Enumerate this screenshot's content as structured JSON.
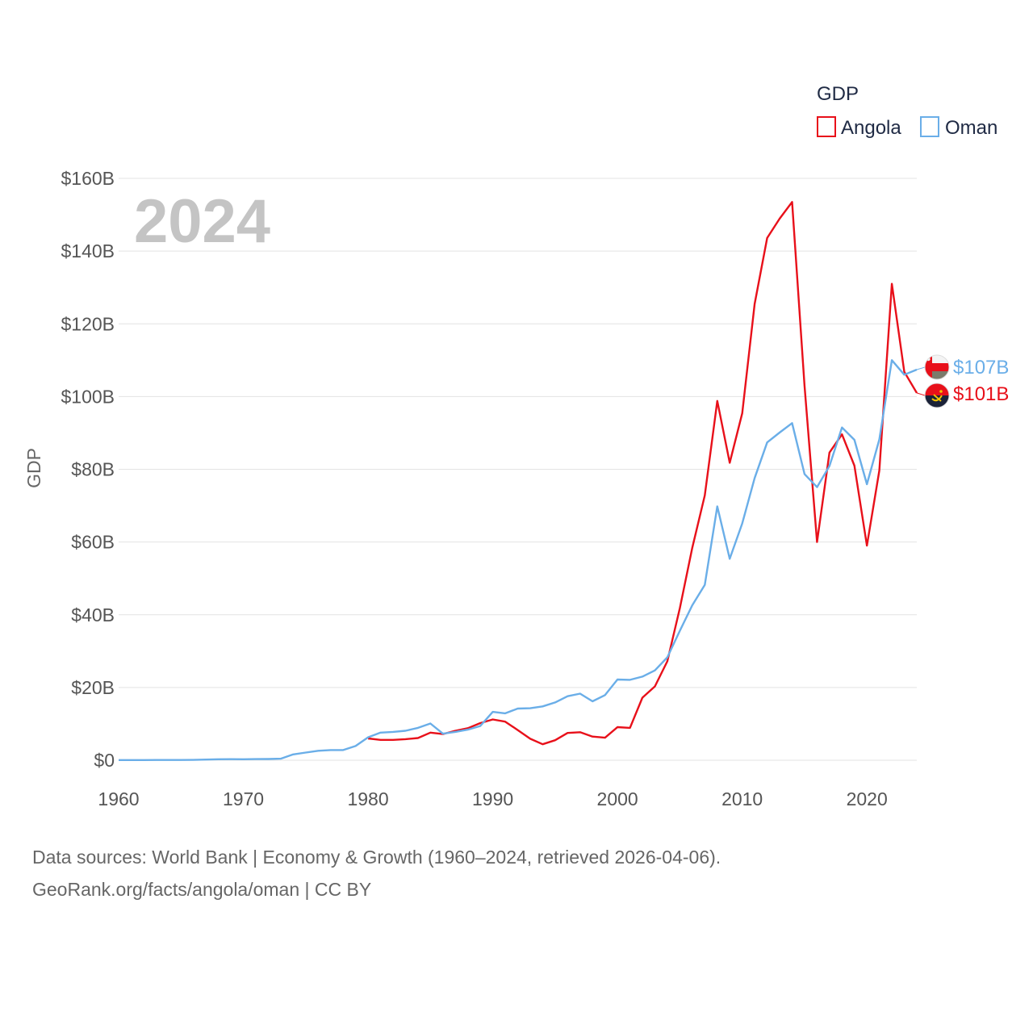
{
  "chart_data": {
    "type": "line",
    "title": "",
    "year_display": "2024",
    "legend_title": "GDP",
    "legend_placement": "top-right",
    "xlabel": "",
    "ylabel": "GDP",
    "xlim": [
      1960,
      2024
    ],
    "ylim": [
      0,
      160
    ],
    "y_unit": "billions USD",
    "x_ticks": [
      1960,
      1970,
      1980,
      1990,
      2000,
      2010,
      2020
    ],
    "x_tick_labels": [
      "1960",
      "1970",
      "1980",
      "1990",
      "2000",
      "2010",
      "2020"
    ],
    "y_ticks": [
      0,
      20,
      40,
      60,
      80,
      100,
      120,
      140,
      160
    ],
    "y_tick_labels": [
      "$0",
      "$20B",
      "$40B",
      "$60B",
      "$80B",
      "$100B",
      "$120B",
      "$140B",
      "$160B"
    ],
    "series": [
      {
        "name": "Angola",
        "color": "#e8101a",
        "end_label": "$101B",
        "flag_icon": "angola-flag-icon",
        "points": [
          [
            1980,
            6.0
          ],
          [
            1981,
            5.6
          ],
          [
            1982,
            5.6
          ],
          [
            1983,
            5.8
          ],
          [
            1984,
            6.1
          ],
          [
            1985,
            7.6
          ],
          [
            1986,
            7.2
          ],
          [
            1987,
            8.1
          ],
          [
            1988,
            8.8
          ],
          [
            1989,
            10.2
          ],
          [
            1990,
            11.2
          ],
          [
            1991,
            10.6
          ],
          [
            1992,
            8.3
          ],
          [
            1993,
            5.9
          ],
          [
            1994,
            4.4
          ],
          [
            1995,
            5.5
          ],
          [
            1996,
            7.5
          ],
          [
            1997,
            7.7
          ],
          [
            1998,
            6.5
          ],
          [
            1999,
            6.2
          ],
          [
            2000,
            9.1
          ],
          [
            2001,
            8.9
          ],
          [
            2002,
            17.2
          ],
          [
            2003,
            20.3
          ],
          [
            2004,
            27.2
          ],
          [
            2005,
            41.8
          ],
          [
            2006,
            58.4
          ],
          [
            2007,
            72.8
          ],
          [
            2008,
            98.8
          ],
          [
            2009,
            81.8
          ],
          [
            2010,
            95.4
          ],
          [
            2011,
            125.5
          ],
          [
            2012,
            143.6
          ],
          [
            2013,
            148.9
          ],
          [
            2014,
            153.5
          ],
          [
            2015,
            103.0
          ],
          [
            2016,
            60.0
          ],
          [
            2017,
            84.6
          ],
          [
            2018,
            89.6
          ],
          [
            2019,
            81.0
          ],
          [
            2020,
            59.0
          ],
          [
            2021,
            79.7
          ],
          [
            2022,
            131.0
          ],
          [
            2023,
            106.8
          ],
          [
            2024,
            101.0
          ]
        ]
      },
      {
        "name": "Oman",
        "color": "#6aaee8",
        "end_label": "$107B",
        "flag_icon": "oman-flag-icon",
        "points": [
          [
            1960,
            0.05
          ],
          [
            1961,
            0.05
          ],
          [
            1962,
            0.05
          ],
          [
            1963,
            0.06
          ],
          [
            1964,
            0.06
          ],
          [
            1965,
            0.07
          ],
          [
            1966,
            0.09
          ],
          [
            1967,
            0.17
          ],
          [
            1968,
            0.26
          ],
          [
            1969,
            0.28
          ],
          [
            1970,
            0.26
          ],
          [
            1971,
            0.3
          ],
          [
            1972,
            0.34
          ],
          [
            1973,
            0.42
          ],
          [
            1974,
            1.6
          ],
          [
            1975,
            2.1
          ],
          [
            1976,
            2.6
          ],
          [
            1977,
            2.8
          ],
          [
            1978,
            2.8
          ],
          [
            1979,
            3.9
          ],
          [
            1980,
            6.3
          ],
          [
            1981,
            7.6
          ],
          [
            1982,
            7.8
          ],
          [
            1983,
            8.1
          ],
          [
            1984,
            8.9
          ],
          [
            1985,
            10.1
          ],
          [
            1986,
            7.3
          ],
          [
            1987,
            7.8
          ],
          [
            1988,
            8.4
          ],
          [
            1989,
            9.4
          ],
          [
            1990,
            13.3
          ],
          [
            1991,
            12.9
          ],
          [
            1992,
            14.2
          ],
          [
            1993,
            14.3
          ],
          [
            1994,
            14.8
          ],
          [
            1995,
            15.9
          ],
          [
            1996,
            17.6
          ],
          [
            1997,
            18.3
          ],
          [
            1998,
            16.2
          ],
          [
            1999,
            17.9
          ],
          [
            2000,
            22.2
          ],
          [
            2001,
            22.1
          ],
          [
            2002,
            23.0
          ],
          [
            2003,
            24.7
          ],
          [
            2004,
            28.3
          ],
          [
            2005,
            35.6
          ],
          [
            2006,
            42.6
          ],
          [
            2007,
            48.2
          ],
          [
            2008,
            69.8
          ],
          [
            2009,
            55.4
          ],
          [
            2010,
            65.1
          ],
          [
            2011,
            77.6
          ],
          [
            2012,
            87.4
          ],
          [
            2013,
            90.1
          ],
          [
            2014,
            92.7
          ],
          [
            2015,
            78.7
          ],
          [
            2016,
            75.1
          ],
          [
            2017,
            80.9
          ],
          [
            2018,
            91.5
          ],
          [
            2019,
            88.1
          ],
          [
            2020,
            75.9
          ],
          [
            2021,
            88.2
          ],
          [
            2022,
            110.0
          ],
          [
            2023,
            106.0
          ],
          [
            2024,
            107.4
          ]
        ]
      }
    ]
  },
  "footer": {
    "line1": "Data sources: World Bank | Economy & Growth (1960–2024, retrieved 2026-04-06).",
    "line2": "GeoRank.org/facts/angola/oman | CC BY"
  }
}
